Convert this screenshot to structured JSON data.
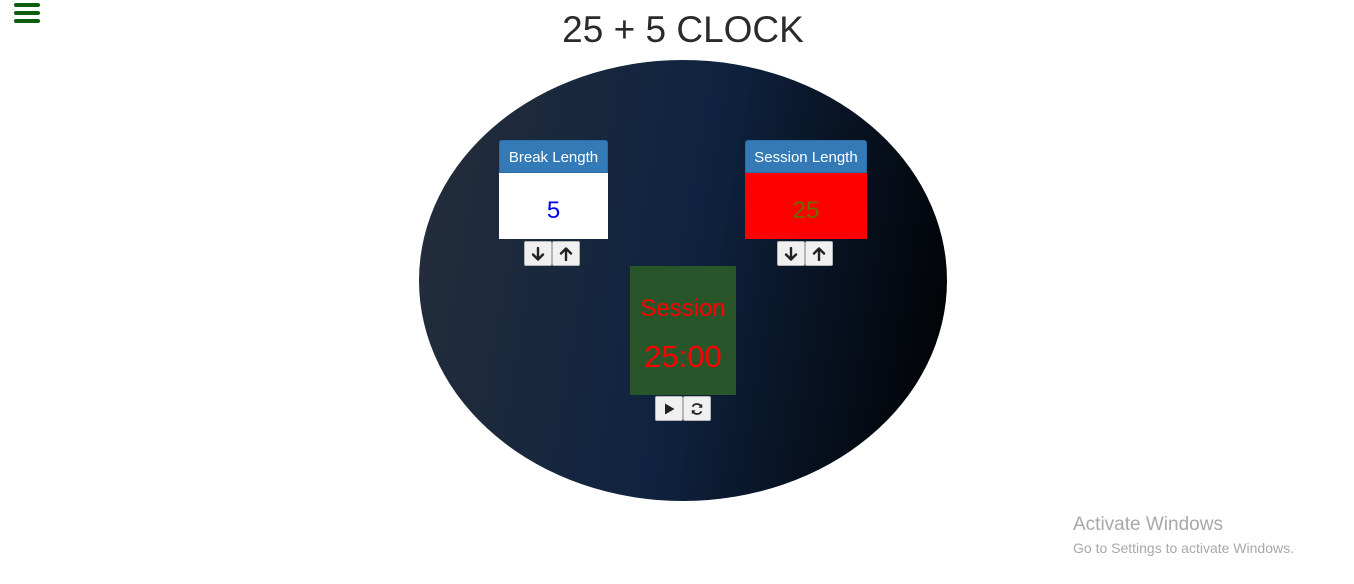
{
  "header": {
    "menu_icon": "hamburger-icon",
    "title": "25 + 5 CLOCK"
  },
  "break": {
    "label": "Break Length",
    "value": "5",
    "decrement_icon": "arrow-down-icon",
    "increment_icon": "arrow-up-icon"
  },
  "session": {
    "label": "Session Length",
    "value": "25",
    "decrement_icon": "arrow-down-icon",
    "increment_icon": "arrow-up-icon"
  },
  "timer": {
    "label": "Session",
    "time_left": "25:00",
    "play_icon": "play-icon",
    "reset_icon": "refresh-icon"
  },
  "watermark": {
    "title": "Activate Windows",
    "subtitle": "Go to Settings to activate Windows."
  },
  "colors": {
    "menu_icon": "#0b5e0b",
    "oval_gradient_start": "#252e3a",
    "oval_gradient_mid": "#0f2340",
    "oval_gradient_end": "#000000",
    "label_bg": "#337ab7",
    "break_value_bg": "#ffffff",
    "break_value_text": "#0000ee",
    "session_value_bg": "#ff0000",
    "session_value_text": "#6b6b00",
    "timer_bg": "#28552a",
    "timer_text": "#ff0000"
  }
}
